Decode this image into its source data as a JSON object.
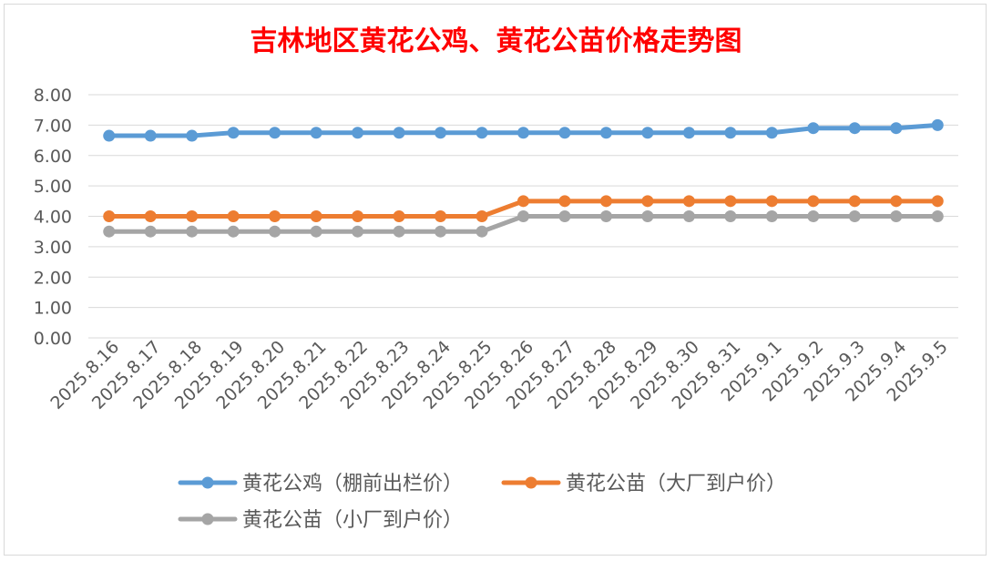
{
  "chart_data": {
    "type": "line",
    "title": "吉林地区黄花公鸡、黄花公苗价格走势图",
    "categories": [
      "2025.8.16",
      "2025.8.17",
      "2025.8.18",
      "2025.8.19",
      "2025.8.20",
      "2025.8.21",
      "2025.8.22",
      "2025.8.23",
      "2025.8.24",
      "2025.8.25",
      "2025.8.26",
      "2025.8.27",
      "2025.8.28",
      "2025.8.29",
      "2025.8.30",
      "2025.8.31",
      "2025.9.1",
      "2025.9.2",
      "2025.9.3",
      "2025.9.4",
      "2025.9.5"
    ],
    "yticks": [
      "0.00",
      "1.00",
      "2.00",
      "3.00",
      "4.00",
      "5.00",
      "6.00",
      "7.00",
      "8.00"
    ],
    "ylim": [
      0,
      8
    ],
    "grid": true,
    "legend_position": "bottom",
    "series": [
      {
        "name": "黄花公鸡（棚前出栏价）",
        "color": "#5b9bd5",
        "values": [
          6.65,
          6.65,
          6.65,
          6.75,
          6.75,
          6.75,
          6.75,
          6.75,
          6.75,
          6.75,
          6.75,
          6.75,
          6.75,
          6.75,
          6.75,
          6.75,
          6.75,
          6.9,
          6.9,
          6.9,
          7.0
        ]
      },
      {
        "name": "黄花公苗（大厂到户价）",
        "color": "#ed7d31",
        "values": [
          4.0,
          4.0,
          4.0,
          4.0,
          4.0,
          4.0,
          4.0,
          4.0,
          4.0,
          4.0,
          4.5,
          4.5,
          4.5,
          4.5,
          4.5,
          4.5,
          4.5,
          4.5,
          4.5,
          4.5,
          4.5
        ]
      },
      {
        "name": "黄花公苗（小厂到户价）",
        "color": "#a5a5a5",
        "values": [
          3.5,
          3.5,
          3.5,
          3.5,
          3.5,
          3.5,
          3.5,
          3.5,
          3.5,
          3.5,
          4.0,
          4.0,
          4.0,
          4.0,
          4.0,
          4.0,
          4.0,
          4.0,
          4.0,
          4.0,
          4.0
        ]
      }
    ]
  }
}
